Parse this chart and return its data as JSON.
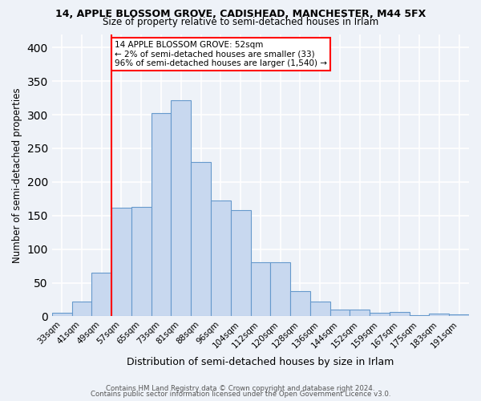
{
  "title": "14, APPLE BLOSSOM GROVE, CADISHEAD, MANCHESTER, M44 5FX",
  "subtitle": "Size of property relative to semi-detached houses in Irlam",
  "xlabel": "Distribution of semi-detached houses by size in Irlam",
  "ylabel": "Number of semi-detached properties",
  "categories": [
    "33sqm",
    "41sqm",
    "49sqm",
    "57sqm",
    "65sqm",
    "73sqm",
    "81sqm",
    "88sqm",
    "96sqm",
    "104sqm",
    "112sqm",
    "120sqm",
    "128sqm",
    "136sqm",
    "144sqm",
    "152sqm",
    "159sqm",
    "167sqm",
    "175sqm",
    "183sqm",
    "191sqm"
  ],
  "values": [
    5,
    22,
    65,
    162,
    163,
    302,
    322,
    230,
    172,
    158,
    80,
    80,
    38,
    22,
    10,
    10,
    5,
    6,
    2,
    4,
    3
  ],
  "bar_color": "#c8d8ef",
  "bar_edge_color": "#6699cc",
  "property_line_index": 3,
  "property_line_color": "red",
  "annotation_text": "14 APPLE BLOSSOM GROVE: 52sqm\n← 2% of semi-detached houses are smaller (33)\n96% of semi-detached houses are larger (1,540) →",
  "annotation_box_color": "white",
  "annotation_box_edge_color": "red",
  "ylim": [
    0,
    420
  ],
  "yticks": [
    0,
    50,
    100,
    150,
    200,
    250,
    300,
    350,
    400
  ],
  "footer_line1": "Contains HM Land Registry data © Crown copyright and database right 2024.",
  "footer_line2": "Contains public sector information licensed under the Open Government Licence v3.0.",
  "bg_color": "#eef2f8",
  "plot_bg_color": "#eef2f8"
}
